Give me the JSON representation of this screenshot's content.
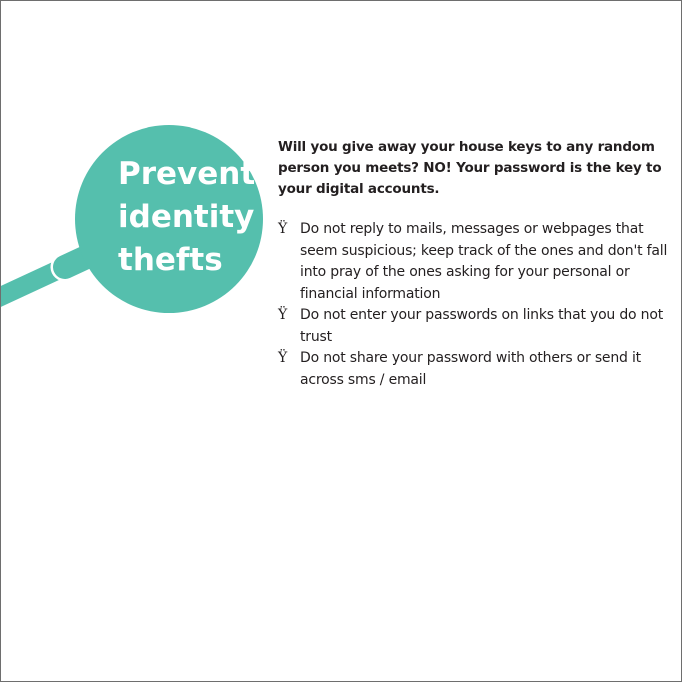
{
  "lens": {
    "title_lines": [
      "Prevent",
      "identity",
      "thefts"
    ],
    "color": "#55bfad",
    "handle_color": "#55bfad",
    "handle_outline": "#ffffff"
  },
  "intro": "Will you give away your house keys to any random person you meets? NO! Your password is the key to your digital accounts.",
  "bullet_glyph": "Ÿ",
  "tips": [
    "Do not reply to mails, messages or webpages that seem suspicious; keep track of the ones and don't fall into pray of the ones asking for your personal or financial information",
    "Do not enter your passwords on links that you do not trust",
    "Do not share your password with others or send it across sms / email"
  ],
  "colors": {
    "text": "#231f20",
    "border": "#6e6e6e",
    "background": "#ffffff"
  }
}
